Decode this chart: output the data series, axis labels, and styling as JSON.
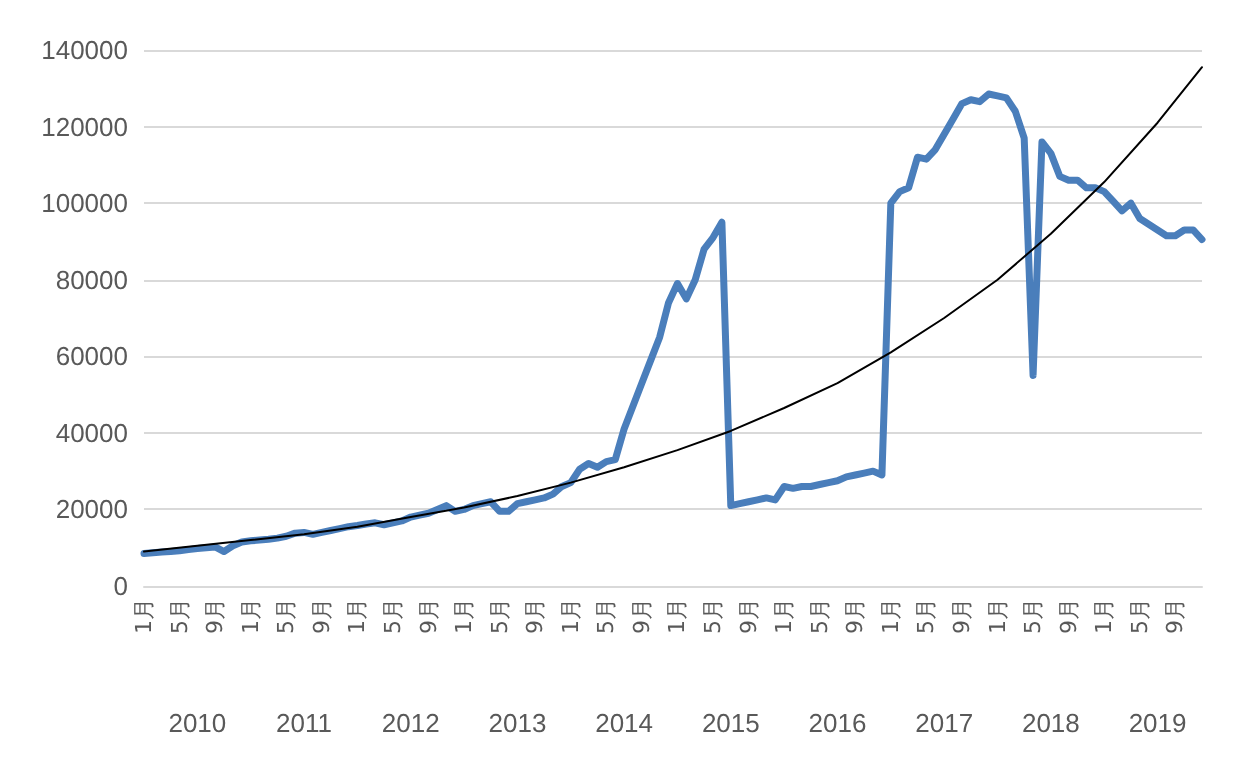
{
  "chart_data": {
    "type": "line",
    "categories": [
      "1月",
      null,
      null,
      null,
      "5月",
      null,
      null,
      null,
      "9月",
      null,
      null,
      null,
      "1月",
      null,
      null,
      null,
      "5月",
      null,
      null,
      null,
      "9月",
      null,
      null,
      null,
      "1月",
      null,
      null,
      null,
      "5月",
      null,
      null,
      null,
      "9月",
      null,
      null,
      null,
      "1月",
      null,
      null,
      null,
      "5月",
      null,
      null,
      null,
      "9月",
      null,
      null,
      null,
      "1月",
      null,
      null,
      null,
      "5月",
      null,
      null,
      null,
      "9月",
      null,
      null,
      null,
      "1月",
      null,
      null,
      null,
      "5月",
      null,
      null,
      null,
      "9月",
      null,
      null,
      null,
      "1月",
      null,
      null,
      null,
      "5月",
      null,
      null,
      null,
      "9月",
      null,
      null,
      null,
      "1月",
      null,
      null,
      null,
      "5月",
      null,
      null,
      null,
      "9月",
      null,
      null,
      null,
      "1月",
      null,
      null,
      null,
      "5月",
      null,
      null,
      null,
      "9月",
      null,
      null,
      null,
      "1月",
      null,
      null,
      null,
      "5月",
      null,
      null,
      null,
      "9月",
      null,
      null,
      null
    ],
    "series": [
      {
        "color": "#4a7ebb",
        "values": [
          8500,
          8700,
          8900,
          9000,
          9200,
          9500,
          9800,
          10000,
          10200,
          9000,
          10500,
          11500,
          11800,
          12000,
          12200,
          12500,
          13000,
          13800,
          14000,
          13500,
          14000,
          14500,
          15000,
          15500,
          15800,
          16200,
          16500,
          16000,
          16500,
          17000,
          18000,
          18500,
          19000,
          20000,
          21000,
          19500,
          20000,
          21000,
          21500,
          22000,
          19500,
          19500,
          21500,
          22000,
          22500,
          23000,
          24000,
          26000,
          27000,
          30500,
          32000,
          31000,
          32500,
          33000,
          41000,
          47000,
          53000,
          59000,
          65000,
          74000,
          79000,
          75000,
          80000,
          88000,
          91000,
          95000,
          21000,
          21500,
          22000,
          22500,
          23000,
          22500,
          26000,
          25500,
          26000,
          26000,
          26500,
          27000,
          27500,
          28500,
          29000,
          29500,
          30000,
          29000,
          100000,
          103000,
          104000,
          112000,
          111500,
          114000,
          118000,
          122000,
          126000,
          127000,
          126500,
          128500,
          128000,
          127500,
          124000,
          117000,
          55000,
          116000,
          113000,
          107000,
          106000,
          106000,
          104000,
          104000,
          103000,
          100500,
          98000,
          100000,
          96000,
          94500,
          93000,
          91500,
          91500,
          93000,
          93000,
          90500
        ]
      },
      {
        "color": "#000000",
        "values": [
          9000,
          null,
          null,
          null,
          null,
          null,
          10500,
          null,
          null,
          null,
          null,
          null,
          12000,
          null,
          null,
          null,
          null,
          null,
          13500,
          null,
          null,
          null,
          null,
          null,
          15500,
          null,
          null,
          null,
          null,
          null,
          18000,
          null,
          null,
          null,
          null,
          null,
          20500,
          null,
          null,
          null,
          null,
          null,
          23500,
          null,
          null,
          null,
          null,
          null,
          27000,
          null,
          null,
          null,
          null,
          null,
          31000,
          null,
          null,
          null,
          null,
          null,
          35500,
          null,
          null,
          null,
          null,
          null,
          40500,
          null,
          null,
          null,
          null,
          null,
          46500,
          null,
          null,
          null,
          null,
          null,
          53000,
          null,
          null,
          null,
          null,
          null,
          61000,
          null,
          null,
          null,
          null,
          null,
          70000,
          null,
          null,
          null,
          null,
          null,
          80000,
          null,
          null,
          null,
          null,
          null,
          92000,
          null,
          null,
          null,
          null,
          null,
          105500,
          null,
          null,
          null,
          null,
          null,
          121000,
          null,
          null,
          null,
          null,
          135500
        ]
      }
    ],
    "annotations": [
      "2010",
      "2011",
      "2012",
      "2013",
      "2014",
      "2015",
      "2016",
      "2017",
      "2018",
      "2019"
    ],
    "ylim": [
      0,
      140000
    ],
    "yticks": [
      0,
      20000,
      40000,
      60000,
      80000,
      100000,
      120000,
      140000
    ],
    "grid": "y",
    "marker": "none"
  }
}
